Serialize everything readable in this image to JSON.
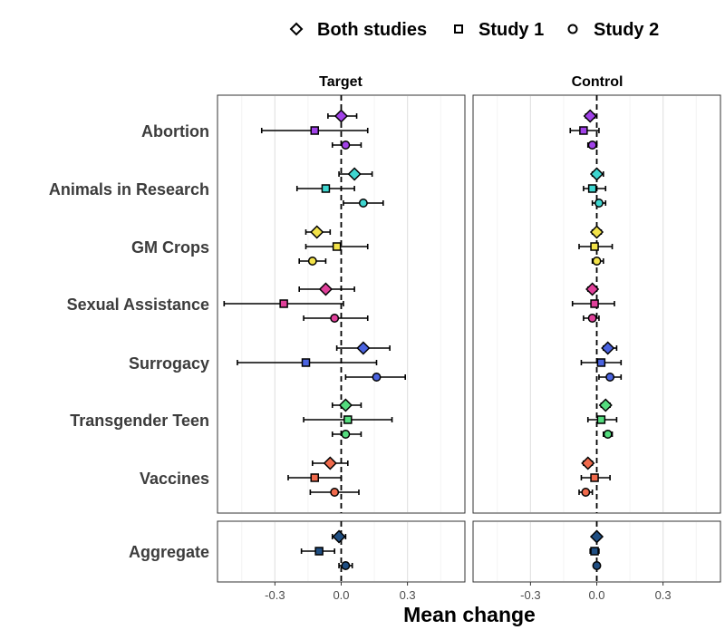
{
  "legend": {
    "both_label": "Both studies",
    "study1_label": "Study 1",
    "study2_label": "Study 2"
  },
  "chart_data": {
    "type": "scatter",
    "subtype": "forest-plot",
    "title": "",
    "xlabel": "Mean change",
    "ylabel": "",
    "panels": [
      "Target",
      "Control"
    ],
    "xlim": [
      -0.56,
      0.56
    ],
    "xticks": [
      -0.3,
      0.0,
      0.3
    ],
    "xtick_labels": [
      "-0.3",
      "0.0",
      "0.3"
    ],
    "grid": true,
    "reference_line": 0,
    "legend_position": "top",
    "categories": [
      "Abortion",
      "Animals in Research",
      "GM Crops",
      "Sexual Assistance",
      "Surrogacy",
      "Transgender Teen",
      "Vaccines",
      "Aggregate"
    ],
    "colors": {
      "Abortion": "#a142e8",
      "Animals in Research": "#3fd6d0",
      "GM Crops": "#f3e34a",
      "Sexual Assistance": "#e0409a",
      "Surrogacy": "#4a63e0",
      "Transgender Teen": "#54dc7e",
      "Vaccines": "#f06a4c",
      "Aggregate": "#1f4e82"
    },
    "series": [
      {
        "name": "Both studies",
        "shape": "diamond",
        "Target": {
          "estimate": [
            0.0,
            0.06,
            -0.11,
            -0.07,
            0.1,
            0.02,
            -0.05,
            -0.01
          ],
          "lower": [
            -0.06,
            -0.01,
            -0.16,
            -0.19,
            -0.02,
            -0.04,
            -0.13,
            -0.04
          ],
          "upper": [
            0.07,
            0.14,
            -0.05,
            0.06,
            0.22,
            0.09,
            0.03,
            0.02
          ]
        },
        "Control": {
          "estimate": [
            -0.03,
            0.0,
            0.0,
            -0.02,
            0.05,
            0.04,
            -0.04,
            0.0
          ],
          "lower": [
            -0.05,
            -0.02,
            -0.02,
            -0.04,
            0.03,
            0.02,
            -0.06,
            -0.01
          ],
          "upper": [
            -0.01,
            0.03,
            0.02,
            0.0,
            0.09,
            0.06,
            -0.02,
            0.01
          ]
        }
      },
      {
        "name": "Study 1",
        "shape": "square",
        "Target": {
          "estimate": [
            -0.12,
            -0.07,
            -0.02,
            -0.26,
            -0.16,
            0.03,
            -0.12,
            -0.1
          ],
          "lower": [
            -0.36,
            -0.2,
            -0.16,
            -0.53,
            -0.47,
            -0.17,
            -0.24,
            -0.18
          ],
          "upper": [
            0.12,
            0.06,
            0.12,
            0.01,
            0.16,
            0.23,
            0.0,
            -0.03
          ]
        },
        "Control": {
          "estimate": [
            -0.06,
            -0.02,
            -0.01,
            -0.01,
            0.02,
            0.02,
            -0.01,
            -0.01
          ],
          "lower": [
            -0.12,
            -0.06,
            -0.08,
            -0.11,
            -0.07,
            -0.04,
            -0.07,
            -0.03
          ],
          "upper": [
            0.01,
            0.04,
            0.07,
            0.08,
            0.11,
            0.09,
            0.06,
            0.01
          ]
        }
      },
      {
        "name": "Study 2",
        "shape": "circle",
        "Target": {
          "estimate": [
            0.02,
            0.1,
            -0.13,
            -0.03,
            0.16,
            0.02,
            -0.03,
            0.02
          ],
          "lower": [
            -0.04,
            0.01,
            -0.19,
            -0.17,
            0.02,
            -0.04,
            -0.14,
            -0.01
          ],
          "upper": [
            0.09,
            0.19,
            -0.07,
            0.12,
            0.29,
            0.09,
            0.08,
            0.05
          ]
        },
        "Control": {
          "estimate": [
            -0.02,
            0.01,
            0.0,
            -0.02,
            0.06,
            0.05,
            -0.05,
            0.0
          ],
          "lower": [
            -0.04,
            -0.02,
            -0.02,
            -0.06,
            0.01,
            0.03,
            -0.08,
            0.0
          ],
          "upper": [
            0.0,
            0.04,
            0.03,
            0.01,
            0.11,
            0.07,
            -0.02,
            0.0
          ]
        }
      }
    ]
  }
}
